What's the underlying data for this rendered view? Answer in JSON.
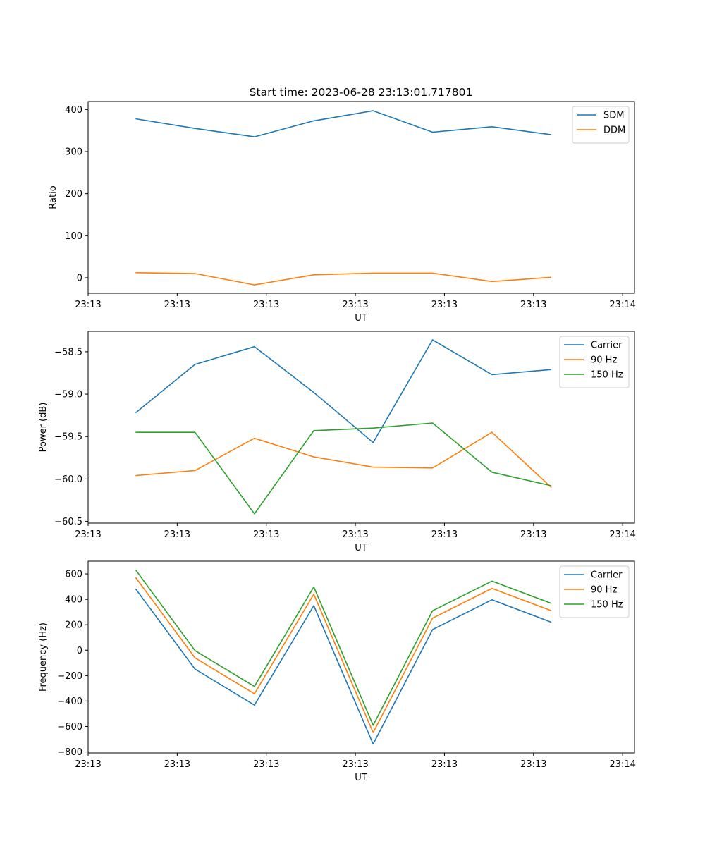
{
  "figure": {
    "title": "Start time: 2023-06-28 23:13:01.717801"
  },
  "chart_data": [
    {
      "type": "line",
      "title": "Start time: 2023-06-28 23:13:01.717801",
      "xlabel": "UT",
      "ylabel": "Ratio",
      "x_tick_labels": [
        "23:13",
        "23:13",
        "23:13",
        "23:13",
        "23:13",
        "23:13",
        "23:14"
      ],
      "x_points": [
        1,
        2,
        3,
        4,
        5,
        6,
        7,
        8
      ],
      "xlim": [
        0.2,
        9.4
      ],
      "x_ticks": [
        0.2,
        1.7,
        3.2,
        4.7,
        6.2,
        7.7,
        9.2
      ],
      "y_ticks": [
        0,
        100,
        200,
        300,
        400
      ],
      "ylim": [
        -37,
        419
      ],
      "legend_position": "top-right",
      "series": [
        {
          "name": "SDM",
          "color": "#1f77b4",
          "values": [
            378,
            355,
            335,
            373,
            397,
            346,
            359,
            340
          ]
        },
        {
          "name": "DDM",
          "color": "#ff7f0e",
          "values": [
            12,
            10,
            -17,
            7,
            11,
            11,
            -9,
            1
          ]
        }
      ]
    },
    {
      "type": "line",
      "title": "",
      "xlabel": "UT",
      "ylabel": "Power (dB)",
      "x_tick_labels": [
        "23:13",
        "23:13",
        "23:13",
        "23:13",
        "23:13",
        "23:13",
        "23:14"
      ],
      "x_points": [
        1,
        2,
        3,
        4,
        5,
        6,
        7,
        8
      ],
      "xlim": [
        0.2,
        9.4
      ],
      "x_ticks": [
        0.2,
        1.7,
        3.2,
        4.7,
        6.2,
        7.7,
        9.2
      ],
      "y_ticks": [
        -60.5,
        -60.0,
        -59.5,
        -59.0,
        -58.5
      ],
      "y_tick_labels": [
        "−60.5",
        "−60.0",
        "−59.5",
        "−59.0",
        "−58.5"
      ],
      "ylim": [
        -60.52,
        -58.26
      ],
      "legend_position": "top-right",
      "series": [
        {
          "name": "Carrier",
          "color": "#1f77b4",
          "values": [
            -59.22,
            -58.65,
            -58.44,
            -58.98,
            -59.57,
            -58.36,
            -58.77,
            -58.71
          ]
        },
        {
          "name": "90 Hz",
          "color": "#ff7f0e",
          "values": [
            -59.96,
            -59.9,
            -59.52,
            -59.74,
            -59.86,
            -59.87,
            -59.45,
            -60.1
          ]
        },
        {
          "name": "150 Hz",
          "color": "#2ca02c",
          "values": [
            -59.45,
            -59.45,
            -60.41,
            -59.43,
            -59.4,
            -59.34,
            -59.92,
            -60.08
          ]
        }
      ]
    },
    {
      "type": "line",
      "title": "",
      "xlabel": "UT",
      "ylabel": "Frequency (Hz)",
      "x_tick_labels": [
        "23:13",
        "23:13",
        "23:13",
        "23:13",
        "23:13",
        "23:13",
        "23:14"
      ],
      "x_points": [
        1,
        2,
        3,
        4,
        5,
        6,
        7,
        8
      ],
      "xlim": [
        0.2,
        9.4
      ],
      "x_ticks": [
        0.2,
        1.7,
        3.2,
        4.7,
        6.2,
        7.7,
        9.2
      ],
      "y_ticks": [
        -800,
        -600,
        -400,
        -200,
        0,
        200,
        400,
        600
      ],
      "y_tick_labels": [
        "−800",
        "−600",
        "−400",
        "−200",
        "0",
        "200",
        "400",
        "600"
      ],
      "ylim": [
        -808,
        700
      ],
      "legend_position": "top-right",
      "series": [
        {
          "name": "Carrier",
          "color": "#1f77b4",
          "values": [
            482,
            -148,
            -432,
            350,
            -738,
            162,
            396,
            220
          ]
        },
        {
          "name": "90 Hz",
          "color": "#ff7f0e",
          "values": [
            572,
            -60,
            -343,
            440,
            -648,
            252,
            486,
            310
          ]
        },
        {
          "name": "150 Hz",
          "color": "#2ca02c",
          "values": [
            632,
            -3,
            -285,
            497,
            -590,
            310,
            543,
            368
          ]
        }
      ]
    }
  ]
}
